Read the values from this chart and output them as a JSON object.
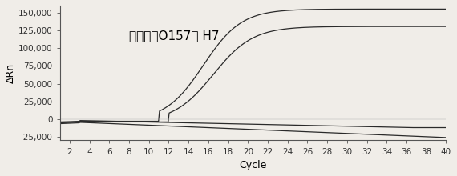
{
  "title": "大肠杆菌O157： H7",
  "xlabel": "Cycle",
  "ylabel": "ΔRn",
  "xlim": [
    1,
    40
  ],
  "ylim": [
    -30000,
    160000
  ],
  "xticks": [
    2,
    4,
    6,
    8,
    10,
    12,
    14,
    16,
    18,
    20,
    22,
    24,
    26,
    28,
    30,
    32,
    34,
    36,
    38,
    40
  ],
  "yticks": [
    -25000,
    0,
    25000,
    50000,
    75000,
    100000,
    125000,
    150000
  ],
  "ytick_labels": [
    "-25,000",
    "0",
    "25,000",
    "50,000",
    "75,000",
    "100,000",
    "125,000",
    "150,000"
  ],
  "background_color": "#f0ede8",
  "line_color": "#2a2a2a",
  "title_fontsize": 11,
  "axis_fontsize": 9,
  "tick_fontsize": 7.5
}
